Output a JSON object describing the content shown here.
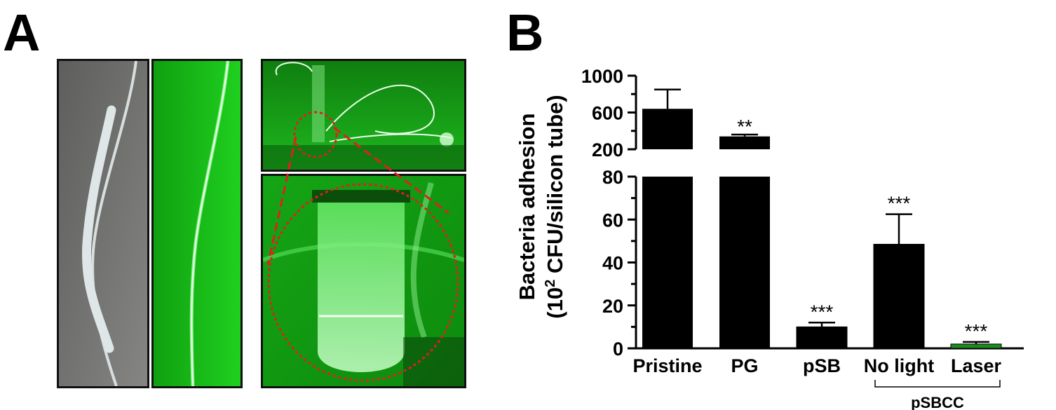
{
  "panels": {
    "a_label": "A",
    "b_label": "B"
  },
  "chart_data": {
    "type": "bar",
    "ylabel_line1": "Bacteria adhesion",
    "ylabel_line2_prefix": "(10",
    "ylabel_line2_sup": "2",
    "ylabel_line2_suffix": " CFU/silicon tube)",
    "categories": [
      "Pristine",
      "PG",
      "pSB",
      "No light",
      "Laser"
    ],
    "values": [
      640,
      340,
      10,
      48.5,
      2
    ],
    "errors": [
      210,
      20,
      2,
      14,
      1
    ],
    "significance": [
      "",
      "**",
      "***",
      "***",
      "***"
    ],
    "bar_colors": [
      "#000000",
      "#000000",
      "#000000",
      "#000000",
      "#1e8a1e"
    ],
    "y_axis_lower": {
      "range": [
        0,
        80
      ],
      "ticks": [
        "0",
        "20",
        "40",
        "60",
        "80"
      ]
    },
    "y_axis_upper": {
      "range": [
        200,
        1000
      ],
      "ticks": [
        "200",
        "600",
        "1000"
      ]
    },
    "axis_break": true,
    "group_bracket": {
      "label": "pSBCC",
      "categories": [
        "No light",
        "Laser"
      ]
    }
  },
  "colors": {
    "photo_green": "#1fd21f",
    "zoom_red": "#e0201c",
    "tube_gray": "#6d6d6b"
  }
}
